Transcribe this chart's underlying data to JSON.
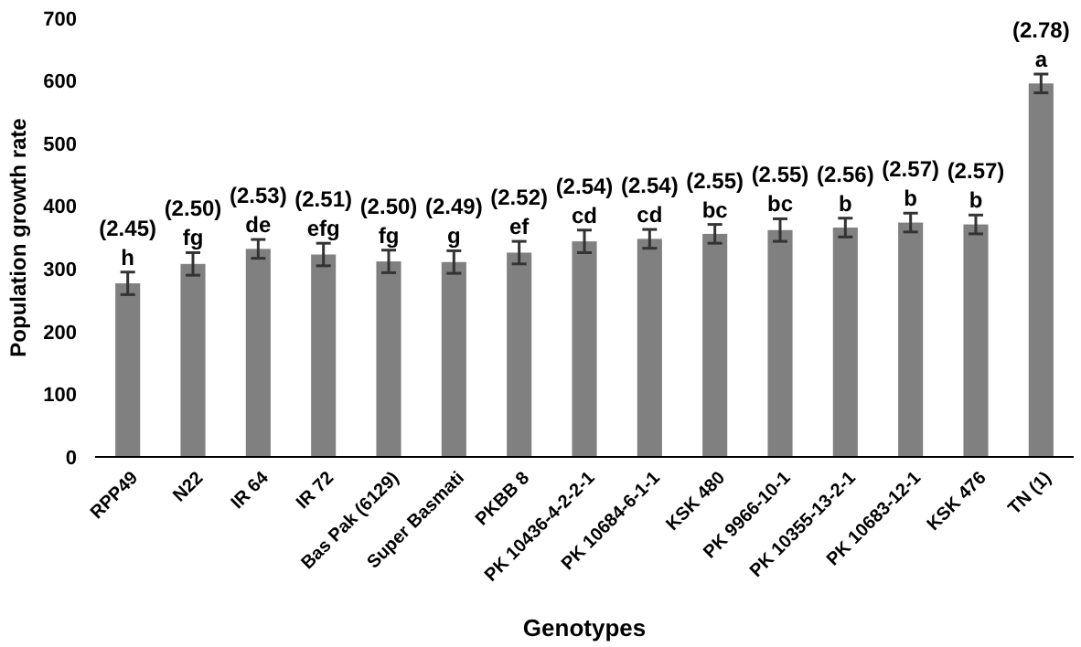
{
  "chart_data": {
    "type": "bar",
    "xlabel": "Genotypes",
    "ylabel": "Population growth rate",
    "categories": [
      "RPP49",
      "N22",
      "IR 64",
      "IR 72",
      "Bas Pak (6129)",
      "Super Basmati",
      "PKBB 8",
      "PK 10436-4-2-2-1",
      "PK 10684-6-1-1",
      "KSK 480",
      "PK 9966-10-1",
      "PK 10355-13-2-1",
      "PK 10683-12-1",
      "KSK 476",
      "TN (1)"
    ],
    "values": [
      277,
      308,
      332,
      323,
      312,
      311,
      326,
      344,
      348,
      356,
      362,
      366,
      374,
      371,
      596
    ],
    "errors": [
      18,
      18,
      15,
      18,
      18,
      18,
      18,
      18,
      15,
      15,
      18,
      15,
      15,
      15,
      15
    ],
    "color": "#808080",
    "ylim": [
      0,
      700
    ],
    "yticks": [
      0,
      100,
      200,
      300,
      400,
      500,
      600,
      700
    ],
    "grid": false,
    "annotations": [
      {
        "text": "(2.45)\nh",
        "x": "RPP49",
        "y": 295
      },
      {
        "text": "(2.50)\nfg",
        "x": "N22",
        "y": 326
      },
      {
        "text": "(2.53)\nde",
        "x": "IR 64",
        "y": 347
      },
      {
        "text": "(2.51)\nefg",
        "x": "IR 72",
        "y": 341
      },
      {
        "text": "(2.50)\nfg",
        "x": "Bas Pak (6129)",
        "y": 330
      },
      {
        "text": "(2.49)\ng",
        "x": "Super Basmati",
        "y": 329
      },
      {
        "text": "(2.52)\nef",
        "x": "PKBB 8",
        "y": 344
      },
      {
        "text": "(2.54)\ncd",
        "x": "PK 10436-4-2-2-1",
        "y": 362
      },
      {
        "text": "(2.54)\ncd",
        "x": "PK 10684-6-1-1",
        "y": 363
      },
      {
        "text": "(2.55)\nbc",
        "x": "KSK 480",
        "y": 371
      },
      {
        "text": "(2.55)\nbc",
        "x": "PK 9966-10-1",
        "y": 380
      },
      {
        "text": "(2.56)\nb",
        "x": "PK 10355-13-2-1",
        "y": 381
      },
      {
        "text": "(2.57)\nb",
        "x": "PK 10683-12-1",
        "y": 389
      },
      {
        "text": "(2.57)\nb",
        "x": "KSK 476",
        "y": 386
      },
      {
        "text": "(2.78)\na",
        "x": "TN (1)",
        "y": 611
      }
    ]
  }
}
